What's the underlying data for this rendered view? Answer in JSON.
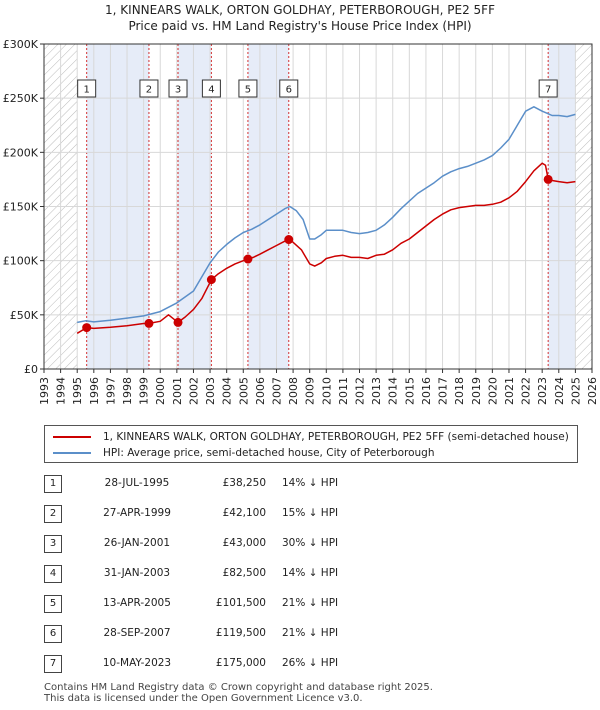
{
  "title_line1": "1, KINNEARS WALK, ORTON GOLDHAY, PETERBOROUGH, PE2 5FF",
  "title_line2": "Price paid vs. HM Land Registry's House Price Index (HPI)",
  "colors": {
    "property": "#cc0000",
    "hpi": "#5b8fc9",
    "band": "#e6ecf8",
    "grid": "#d8d8d8"
  },
  "chart_data": {
    "type": "line",
    "xlim": [
      1993,
      2026
    ],
    "ylim": [
      0,
      300000
    ],
    "y_ticks": [
      {
        "value": 0,
        "label": "£0"
      },
      {
        "value": 50000,
        "label": "£50K"
      },
      {
        "value": 100000,
        "label": "£100K"
      },
      {
        "value": 150000,
        "label": "£150K"
      },
      {
        "value": 200000,
        "label": "£200K"
      },
      {
        "value": 250000,
        "label": "£250K"
      },
      {
        "value": 300000,
        "label": "£300K"
      }
    ],
    "x_ticks": [
      "1993",
      "1994",
      "1995",
      "1996",
      "1997",
      "1998",
      "1999",
      "2000",
      "2001",
      "2002",
      "2003",
      "2004",
      "2005",
      "2006",
      "2007",
      "2008",
      "2009",
      "2010",
      "2011",
      "2012",
      "2013",
      "2014",
      "2015",
      "2016",
      "2017",
      "2018",
      "2019",
      "2020",
      "2021",
      "2022",
      "2023",
      "2024",
      "2025",
      "2026"
    ],
    "hatched_ranges": [
      [
        1993,
        1995.0
      ],
      [
        2025.0,
        2026
      ]
    ],
    "shaded_ranges": [
      [
        1995.57,
        1999.32
      ],
      [
        2001.07,
        2003.08
      ],
      [
        2005.28,
        2007.74
      ],
      [
        2023.36,
        2025.0
      ]
    ],
    "series": [
      {
        "name": "1, KINNEARS WALK, ORTON GOLDHAY, PETERBOROUGH, PE2 5FF (semi-detached house)",
        "key": "property",
        "x": [
          1995.0,
          1995.57,
          1996.0,
          1997.0,
          1998.0,
          1999.0,
          1999.32,
          2000.0,
          2000.5,
          2001.07,
          2001.5,
          2002.0,
          2002.5,
          2003.0,
          2003.08,
          2003.5,
          2004.0,
          2004.5,
          2005.0,
          2005.28,
          2005.6,
          2006.0,
          2006.5,
          2007.0,
          2007.5,
          2007.74,
          2008.0,
          2008.5,
          2009.0,
          2009.3,
          2009.7,
          2010.0,
          2010.5,
          2011.0,
          2011.5,
          2012.0,
          2012.5,
          2013.0,
          2013.5,
          2014.0,
          2014.5,
          2015.0,
          2015.5,
          2016.0,
          2016.5,
          2017.0,
          2017.5,
          2018.0,
          2018.5,
          2019.0,
          2019.5,
          2020.0,
          2020.5,
          2021.0,
          2021.5,
          2022.0,
          2022.5,
          2023.0,
          2023.2,
          2023.36,
          2023.6,
          2024.0,
          2024.5,
          2025.0
        ],
        "y": [
          33000,
          38250,
          37500,
          38500,
          40000,
          42000,
          42100,
          44000,
          50000,
          43000,
          48000,
          55000,
          65000,
          80000,
          82500,
          88000,
          93000,
          97000,
          100000,
          101500,
          103000,
          106000,
          110000,
          114000,
          118000,
          119500,
          117000,
          110000,
          97000,
          95000,
          98000,
          102000,
          104000,
          105000,
          103000,
          103000,
          102000,
          105000,
          106000,
          110000,
          116000,
          120000,
          126000,
          132000,
          138000,
          143000,
          147000,
          149000,
          150000,
          151000,
          151000,
          152000,
          154000,
          158000,
          164000,
          173000,
          183000,
          190000,
          188000,
          175000,
          174000,
          173000,
          172000,
          173000
        ]
      },
      {
        "name": "HPI: Average price, semi-detached house, City of Peterborough",
        "key": "hpi",
        "x": [
          1995.0,
          1995.5,
          1996.0,
          1997.0,
          1998.0,
          1999.0,
          2000.0,
          2001.0,
          2002.0,
          2002.5,
          2003.0,
          2003.5,
          2004.0,
          2004.5,
          2005.0,
          2005.5,
          2006.0,
          2006.5,
          2007.0,
          2007.5,
          2007.8,
          2008.2,
          2008.6,
          2009.0,
          2009.3,
          2009.7,
          2010.0,
          2010.5,
          2011.0,
          2011.5,
          2012.0,
          2012.5,
          2013.0,
          2013.5,
          2014.0,
          2014.5,
          2015.0,
          2015.5,
          2016.0,
          2016.5,
          2017.0,
          2017.5,
          2018.0,
          2018.5,
          2019.0,
          2019.5,
          2020.0,
          2020.5,
          2021.0,
          2021.5,
          2022.0,
          2022.5,
          2023.0,
          2023.3,
          2023.6,
          2024.0,
          2024.5,
          2025.0
        ],
        "y": [
          43000,
          44500,
          43500,
          45000,
          47000,
          49000,
          53000,
          61000,
          72000,
          85000,
          98000,
          108000,
          115000,
          121000,
          126000,
          129000,
          133000,
          138000,
          143000,
          148000,
          150000,
          146000,
          138000,
          120000,
          120000,
          124000,
          128000,
          128000,
          128000,
          126000,
          125000,
          126000,
          128000,
          133000,
          140000,
          148000,
          155000,
          162000,
          167000,
          172000,
          178000,
          182000,
          185000,
          187000,
          190000,
          193000,
          197000,
          204000,
          212000,
          225000,
          238000,
          242000,
          238000,
          236000,
          234000,
          234000,
          233000,
          235000
        ]
      }
    ],
    "sales": [
      {
        "n": "1",
        "x": 1995.57,
        "y": 38250
      },
      {
        "n": "2",
        "x": 1999.32,
        "y": 42100
      },
      {
        "n": "3",
        "x": 2001.07,
        "y": 43000
      },
      {
        "n": "4",
        "x": 2003.08,
        "y": 82500
      },
      {
        "n": "5",
        "x": 2005.28,
        "y": 101500
      },
      {
        "n": "6",
        "x": 2007.74,
        "y": 119500
      },
      {
        "n": "7",
        "x": 2023.36,
        "y": 175000
      }
    ]
  },
  "legend": {
    "property": "1, KINNEARS WALK, ORTON GOLDHAY, PETERBOROUGH, PE2 5FF (semi-detached house)",
    "hpi": "HPI: Average price, semi-detached house, City of Peterborough"
  },
  "transactions": [
    {
      "n": "1",
      "date": "28-JUL-1995",
      "price": "£38,250",
      "hpi": "14% ↓ HPI"
    },
    {
      "n": "2",
      "date": "27-APR-1999",
      "price": "£42,100",
      "hpi": "15% ↓ HPI"
    },
    {
      "n": "3",
      "date": "26-JAN-2001",
      "price": "£43,000",
      "hpi": "30% ↓ HPI"
    },
    {
      "n": "4",
      "date": "31-JAN-2003",
      "price": "£82,500",
      "hpi": "14% ↓ HPI"
    },
    {
      "n": "5",
      "date": "13-APR-2005",
      "price": "£101,500",
      "hpi": "21% ↓ HPI"
    },
    {
      "n": "6",
      "date": "28-SEP-2007",
      "price": "£119,500",
      "hpi": "21% ↓ HPI"
    },
    {
      "n": "7",
      "date": "10-MAY-2023",
      "price": "£175,000",
      "hpi": "26% ↓ HPI"
    }
  ],
  "footer": {
    "line1": "Contains HM Land Registry data © Crown copyright and database right 2025.",
    "line2": "This data is licensed under the Open Government Licence v3.0."
  }
}
